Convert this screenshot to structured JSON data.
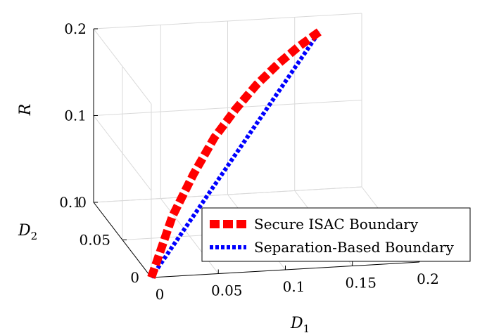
{
  "chart_data": {
    "type": "line",
    "projection": "3d",
    "xlabel": "D",
    "xlabel_sub": "1",
    "ylabel": "D",
    "ylabel_sub": "2",
    "zlabel": "R",
    "x_ticks": [
      "0",
      "0.05",
      "0.1",
      "0.15",
      "0.2"
    ],
    "y_ticks": [
      "0",
      "0.05",
      "0.1"
    ],
    "z_ticks": [
      "0",
      "0.1",
      "0.2"
    ],
    "xlim": [
      0,
      0.2
    ],
    "ylim": [
      0,
      0.1
    ],
    "zlim": [
      0,
      0.2
    ],
    "grid": true,
    "legend_position": "bottom-right",
    "series": [
      {
        "name": "Secure ISAC Boundary",
        "color": "#ff0000",
        "style": "dashed",
        "points": [
          {
            "d1": 0,
            "d2": 0,
            "r": 0
          },
          {
            "d1": 0.02,
            "d2": 0.01,
            "r": 0.06
          },
          {
            "d1": 0.04,
            "d2": 0.02,
            "r": 0.098
          },
          {
            "d1": 0.06,
            "d2": 0.03,
            "r": 0.13
          },
          {
            "d1": 0.08,
            "d2": 0.04,
            "r": 0.152
          },
          {
            "d1": 0.1,
            "d2": 0.05,
            "r": 0.17
          },
          {
            "d1": 0.12,
            "d2": 0.06,
            "r": 0.183
          },
          {
            "d1": 0.14,
            "d2": 0.07,
            "r": 0.193
          },
          {
            "d1": 0.16,
            "d2": 0.08,
            "r": 0.2
          }
        ]
      },
      {
        "name": "Separation-Based Boundary",
        "color": "#0000ff",
        "style": "dotted",
        "points": [
          {
            "d1": 0,
            "d2": 0,
            "r": 0
          },
          {
            "d1": 0.02,
            "d2": 0.01,
            "r": 0.025
          },
          {
            "d1": 0.04,
            "d2": 0.02,
            "r": 0.05
          },
          {
            "d1": 0.06,
            "d2": 0.03,
            "r": 0.075
          },
          {
            "d1": 0.08,
            "d2": 0.04,
            "r": 0.1
          },
          {
            "d1": 0.1,
            "d2": 0.05,
            "r": 0.125
          },
          {
            "d1": 0.12,
            "d2": 0.06,
            "r": 0.15
          },
          {
            "d1": 0.14,
            "d2": 0.07,
            "r": 0.175
          },
          {
            "d1": 0.16,
            "d2": 0.08,
            "r": 0.2
          }
        ]
      }
    ]
  }
}
